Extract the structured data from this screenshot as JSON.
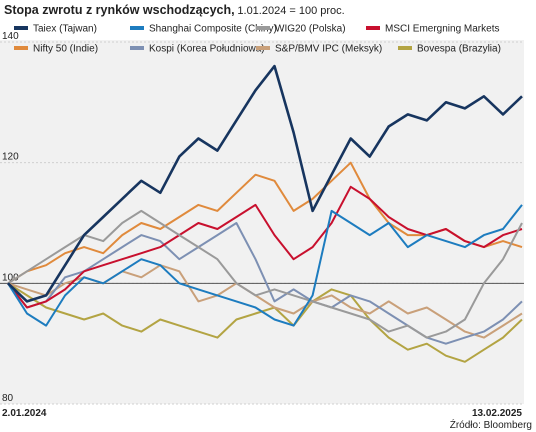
{
  "chart_data": {
    "type": "line",
    "title": "Stopa zwrotu z rynków wschodzących,",
    "subtitle": "1.01.2024 = 100 proc.",
    "x_axis_labels": [
      "2.01.2024",
      "13.02.2025"
    ],
    "source": "Źródło: Bloomberg",
    "ylim": [
      80,
      140
    ],
    "yticks": [
      80,
      100,
      120,
      140
    ],
    "baseline": 100,
    "grid": true,
    "series": [
      {
        "name": "Taiex (Tajwan)",
        "color": "#17355f",
        "values": [
          100,
          97,
          98,
          103,
          108,
          111,
          114,
          117,
          115,
          121,
          124,
          122,
          127,
          132,
          136,
          125,
          112,
          118,
          124,
          121,
          126,
          128,
          127,
          130,
          129,
          131,
          128,
          131
        ]
      },
      {
        "name": "Shanghai Composite (Chiny)",
        "color": "#1d7cbf",
        "values": [
          100,
          95,
          93,
          98,
          101,
          100,
          102,
          104,
          103,
          100,
          99,
          98,
          97,
          96,
          94,
          93,
          98,
          112,
          110,
          108,
          110,
          106,
          108,
          107,
          106,
          108,
          109,
          113
        ]
      },
      {
        "name": "WIG20 (Polska)",
        "color": "#9a9a9a",
        "values": [
          100,
          102,
          104,
          106,
          108,
          107,
          110,
          112,
          110,
          108,
          106,
          104,
          100,
          98,
          99,
          98,
          97,
          96,
          95,
          94,
          92,
          93,
          91,
          92,
          94,
          100,
          104,
          110
        ]
      },
      {
        "name": "MSCI Emergning Markets",
        "color": "#c8102e",
        "values": [
          100,
          96,
          97,
          99,
          102,
          103,
          104,
          105,
          106,
          108,
          110,
          109,
          111,
          113,
          108,
          104,
          106,
          110,
          116,
          114,
          111,
          109,
          108,
          109,
          107,
          106,
          108,
          109
        ]
      },
      {
        "name": "Nifty 50 (Indie)",
        "color": "#e08a3c",
        "values": [
          100,
          102,
          103,
          105,
          106,
          105,
          108,
          110,
          109,
          111,
          113,
          112,
          115,
          118,
          117,
          112,
          114,
          117,
          120,
          114,
          110,
          108,
          108,
          109,
          107,
          106,
          107,
          106
        ]
      },
      {
        "name": "Kospi (Korea Południowa)",
        "color": "#7d90b3",
        "values": [
          100,
          96,
          97,
          101,
          102,
          104,
          106,
          108,
          107,
          104,
          106,
          108,
          110,
          104,
          97,
          99,
          97,
          96,
          98,
          97,
          95,
          93,
          91,
          90,
          91,
          92,
          94,
          97
        ]
      },
      {
        "name": "S&P/BMV IPC (Meksyk)",
        "color": "#c9a07a",
        "values": [
          100,
          99,
          98,
          100,
          101,
          100,
          102,
          101,
          103,
          102,
          97,
          98,
          100,
          98,
          96,
          95,
          97,
          98,
          96,
          95,
          97,
          95,
          96,
          94,
          92,
          91,
          93,
          95
        ]
      },
      {
        "name": "Bovespa (Brazylia)",
        "color": "#b3a443",
        "values": [
          100,
          98,
          96,
          95,
          94,
          95,
          93,
          92,
          94,
          93,
          92,
          91,
          94,
          95,
          96,
          93,
          97,
          99,
          98,
          94,
          91,
          89,
          90,
          88,
          87,
          89,
          91,
          94
        ]
      }
    ]
  }
}
